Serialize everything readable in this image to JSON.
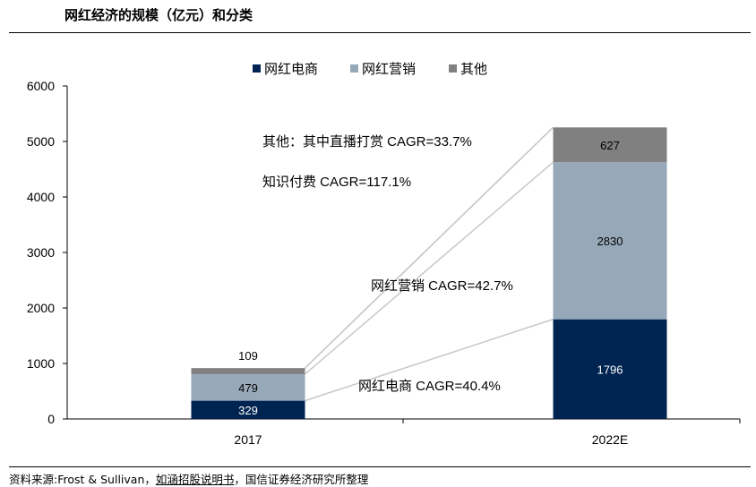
{
  "header": {
    "title": "网红经济的规模（亿元）和分类"
  },
  "source": {
    "prefix": "资料来源:Frost & Sullivan，",
    "link": "如涵招股说明书",
    "suffix": "，国信证券经济研究所整理"
  },
  "colors": {
    "ecommerce": "#002452",
    "marketing": "#97a9b9",
    "other": "#808080"
  },
  "chart_data": {
    "type": "bar",
    "stacked": true,
    "categories": [
      "2017",
      "2022E"
    ],
    "series": [
      {
        "name": "网红电商",
        "values": [
          329,
          1796
        ]
      },
      {
        "name": "网红营销",
        "values": [
          479,
          2830
        ]
      },
      {
        "name": "其他",
        "values": [
          109,
          627
        ]
      }
    ],
    "ylim": [
      0,
      6000
    ],
    "yticks": [
      0,
      1000,
      2000,
      3000,
      4000,
      5000,
      6000
    ],
    "legend": "top-center",
    "grid": false,
    "annotations": [
      "其他：其中直播打赏 CAGR=33.7%",
      "知识付费 CAGR=117.1%",
      "网红营销 CAGR=42.7%",
      "网红电商 CAGR=40.4%"
    ]
  }
}
